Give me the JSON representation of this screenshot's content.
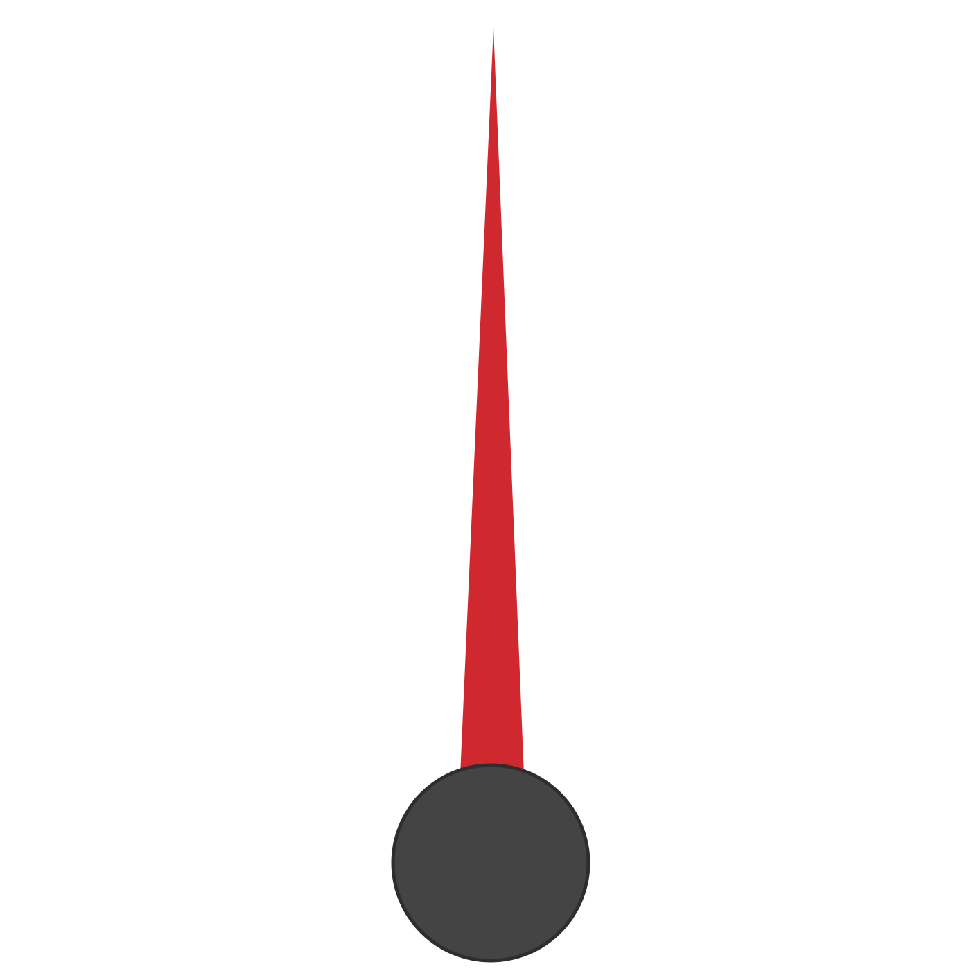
{
  "needle": {
    "icon": "gauge-needle-icon",
    "needle_color": "#d0282f",
    "hub_color": "#444444",
    "hub_stroke_color": "#2e2e2e",
    "background_color": "#ffffff"
  }
}
